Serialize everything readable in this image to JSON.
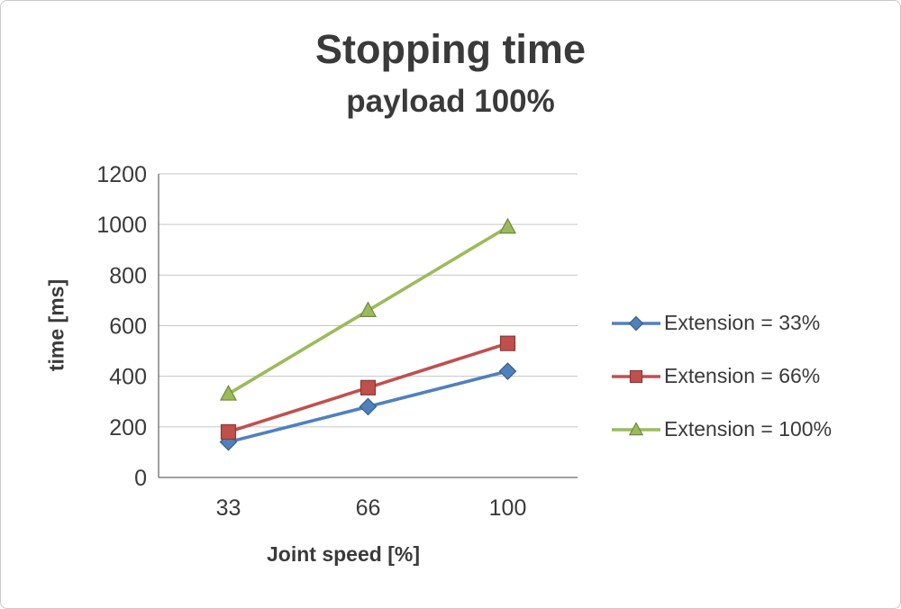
{
  "window": {
    "background": "#ffffff",
    "border_color": "#c9c9c9"
  },
  "chart_data": {
    "type": "line",
    "title": "Stopping time",
    "subtitle": "payload 100%",
    "xlabel": "Joint speed [%]",
    "ylabel": "time [ms]",
    "categories": [
      "33",
      "66",
      "100"
    ],
    "ylim": [
      0,
      1200
    ],
    "yticks": [
      0,
      200,
      400,
      600,
      800,
      1000,
      1200
    ],
    "grid": true,
    "legend_position": "right",
    "series": [
      {
        "name": "Extension = 33%",
        "marker": "diamond",
        "color": "#4F81BD",
        "values": [
          140,
          280,
          420
        ]
      },
      {
        "name": "Extension = 66%",
        "marker": "square",
        "color": "#C0504D",
        "values": [
          180,
          355,
          530
        ]
      },
      {
        "name": "Extension = 100%",
        "marker": "triangle",
        "color": "#9BBB59",
        "values": [
          330,
          660,
          990
        ]
      }
    ]
  }
}
